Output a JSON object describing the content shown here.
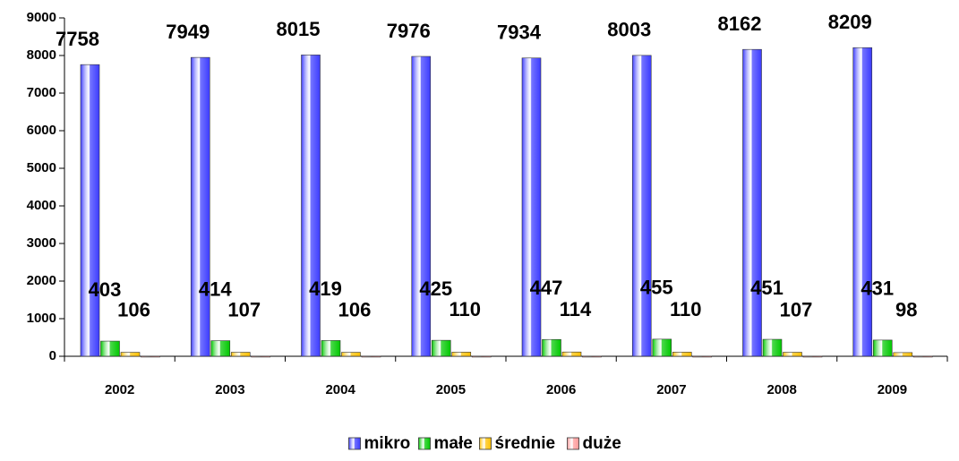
{
  "chart_data": {
    "type": "bar",
    "categories": [
      "2002",
      "2003",
      "2004",
      "2005",
      "2006",
      "2007",
      "2008",
      "2009"
    ],
    "series": [
      {
        "name": "mikro",
        "color": "#3b3bff",
        "data_labels": true,
        "values": [
          7758,
          7949,
          8015,
          7976,
          7934,
          8003,
          8162,
          8209
        ]
      },
      {
        "name": "małe",
        "color": "#00c800",
        "data_labels": true,
        "values": [
          403,
          414,
          419,
          425,
          447,
          455,
          451,
          431
        ]
      },
      {
        "name": "średnie",
        "color": "#ffc000",
        "data_labels": true,
        "values": [
          106,
          107,
          106,
          110,
          114,
          110,
          107,
          98
        ]
      },
      {
        "name": "duże",
        "color": "#ff9999",
        "data_labels": false,
        "values": [
          2,
          2,
          2,
          2,
          2,
          2,
          2,
          2
        ]
      }
    ],
    "ylim": [
      0,
      9000
    ],
    "yticks": [
      0,
      1000,
      2000,
      3000,
      4000,
      5000,
      6000,
      7000,
      8000,
      9000
    ],
    "legend": "bottom"
  }
}
